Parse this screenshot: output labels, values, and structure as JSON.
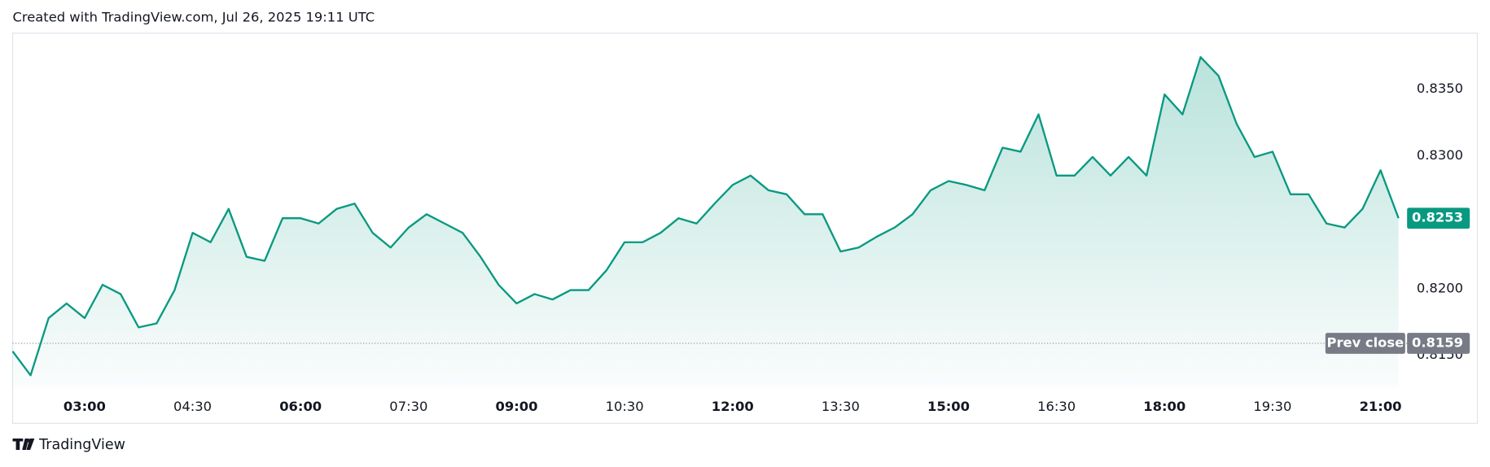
{
  "header": "Created with TradingView.com, Jul 26, 2025 19:11 UTC",
  "footer": "TradingView",
  "chart_data": {
    "type": "area",
    "x": [
      "02:00",
      "02:15",
      "02:30",
      "02:45",
      "03:00",
      "03:15",
      "03:30",
      "03:45",
      "04:00",
      "04:15",
      "04:30",
      "04:45",
      "05:00",
      "05:15",
      "05:30",
      "05:45",
      "06:00",
      "06:15",
      "06:30",
      "06:45",
      "07:00",
      "07:15",
      "07:30",
      "07:45",
      "08:00",
      "08:15",
      "08:30",
      "08:45",
      "09:00",
      "09:15",
      "09:30",
      "09:45",
      "10:00",
      "10:15",
      "10:30",
      "10:45",
      "11:00",
      "11:15",
      "11:30",
      "11:45",
      "12:00",
      "12:15",
      "12:30",
      "12:45",
      "13:00",
      "13:15",
      "13:30",
      "13:45",
      "14:00",
      "14:15",
      "14:30",
      "14:45",
      "15:00",
      "15:15",
      "15:30",
      "15:45",
      "16:00",
      "16:15",
      "16:30",
      "16:45",
      "17:00",
      "17:15",
      "17:30",
      "17:45",
      "18:00",
      "18:15",
      "18:30",
      "18:45",
      "19:00",
      "19:15",
      "19:30",
      "19:45",
      "20:00",
      "20:15",
      "20:30",
      "20:45",
      "21:00",
      "21:15"
    ],
    "series": [
      {
        "color": "#089981",
        "values": [
          0.8153,
          0.8135,
          0.8178,
          0.8189,
          0.8178,
          0.8203,
          0.8196,
          0.8171,
          0.8174,
          0.8199,
          0.8242,
          0.8235,
          0.826,
          0.8224,
          0.8221,
          0.8253,
          0.8253,
          0.8249,
          0.826,
          0.8264,
          0.8242,
          0.8231,
          0.8246,
          0.8256,
          0.8249,
          0.8242,
          0.8224,
          0.8203,
          0.8189,
          0.8196,
          0.8192,
          0.8199,
          0.8199,
          0.8214,
          0.8235,
          0.8235,
          0.8242,
          0.8253,
          0.8249,
          0.8264,
          0.8278,
          0.8285,
          0.8274,
          0.8271,
          0.8256,
          0.8256,
          0.8228,
          0.8231,
          0.8239,
          0.8246,
          0.8256,
          0.8274,
          0.8281,
          0.8278,
          0.8274,
          0.8306,
          0.8303,
          0.8331,
          0.8285,
          0.8285,
          0.8299,
          0.8285,
          0.8299,
          0.8285,
          0.8346,
          0.8331,
          0.8374,
          0.836,
          0.8324,
          0.8299,
          0.8303,
          0.8271,
          0.8271,
          0.8249,
          0.8246,
          0.826,
          0.8289,
          0.8253
        ]
      }
    ],
    "xticks": [
      "03:00",
      "04:30",
      "06:00",
      "07:30",
      "09:00",
      "10:30",
      "12:00",
      "13:30",
      "15:00",
      "16:30",
      "18:00",
      "19:30",
      "21:00"
    ],
    "ylim": [
      0.8126,
      0.8392
    ],
    "yticks": [
      {
        "value": 0.815,
        "label": "0.8150"
      },
      {
        "value": 0.82,
        "label": "0.8200"
      },
      {
        "value": 0.83,
        "label": "0.8300"
      },
      {
        "value": 0.835,
        "label": "0.8350"
      }
    ],
    "prev_close": {
      "label": "Prev close",
      "value": 0.8159
    }
  }
}
